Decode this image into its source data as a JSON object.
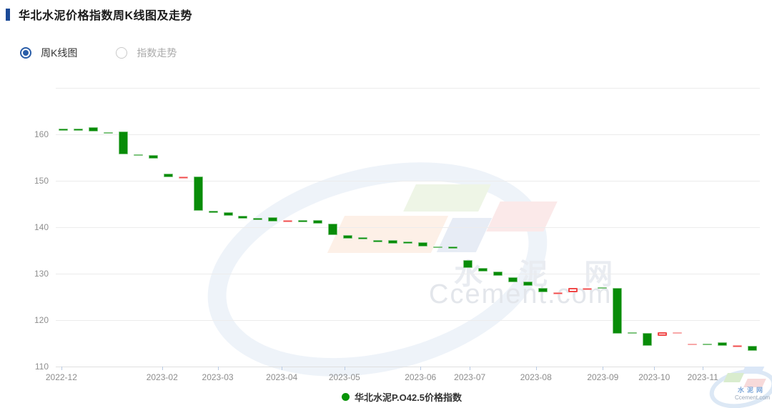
{
  "page": {
    "title": "华北水泥价格指数周K线图及走势"
  },
  "controls": {
    "options": [
      {
        "label": "周K线图",
        "selected": true
      },
      {
        "label": "指数走势",
        "selected": false
      }
    ]
  },
  "watermark": {
    "cn": "水 泥 网",
    "en": "Ccement.com"
  },
  "corner_logo": {
    "cn": "水泥网",
    "en": "Ccement.com"
  },
  "legend": {
    "label": "华北水泥P.O42.5价格指数",
    "color": "#089408"
  },
  "chart_data": {
    "type": "candlestick",
    "title": "华北水泥价格指数周K线图及走势",
    "series_name": "华北水泥P.O42.5价格指数",
    "ylim": [
      110,
      170
    ],
    "y_ticks": [
      110,
      120,
      130,
      140,
      150,
      160
    ],
    "grid": true,
    "colors": {
      "fall": "#088c08",
      "rise": "#f04a4a"
    },
    "x_ticks": [
      {
        "label": "2022-12",
        "pct": 0.8
      },
      {
        "label": "2023-02",
        "pct": 15.1
      },
      {
        "label": "2023-03",
        "pct": 23.0
      },
      {
        "label": "2023-04",
        "pct": 32.1
      },
      {
        "label": "2023-05",
        "pct": 41.0
      },
      {
        "label": "2023-06",
        "pct": 51.8
      },
      {
        "label": "2023-07",
        "pct": 58.8
      },
      {
        "label": "2023-08",
        "pct": 68.2
      },
      {
        "label": "2023-09",
        "pct": 77.7
      },
      {
        "label": "2023-10",
        "pct": 85.0
      },
      {
        "label": "2023-11",
        "pct": 91.9
      },
      {
        "label": "",
        "pct": 99.7
      }
    ],
    "candles": [
      {
        "o": 161.2,
        "c": 161.1,
        "t": "g"
      },
      {
        "o": 161.2,
        "c": 161.1,
        "t": "g"
      },
      {
        "o": 161.5,
        "c": 160.6,
        "t": "g"
      },
      {
        "o": 160.5,
        "c": 160.3,
        "t": "g"
      },
      {
        "o": 160.6,
        "c": 155.7,
        "t": "g"
      },
      {
        "o": 155.7,
        "c": 155.5,
        "t": "g"
      },
      {
        "o": 155.5,
        "c": 154.7,
        "t": "g"
      },
      {
        "o": 151.5,
        "c": 150.7,
        "t": "g"
      },
      {
        "o": 150.7,
        "c": 150.9,
        "t": "r"
      },
      {
        "o": 151.0,
        "c": 143.5,
        "t": "g"
      },
      {
        "o": 143.5,
        "c": 143.3,
        "t": "g"
      },
      {
        "o": 143.3,
        "c": 142.5,
        "t": "g"
      },
      {
        "o": 142.5,
        "c": 141.9,
        "t": "g"
      },
      {
        "o": 142.0,
        "c": 141.8,
        "t": "g"
      },
      {
        "o": 142.1,
        "c": 141.3,
        "t": "g"
      },
      {
        "o": 141.0,
        "c": 141.6,
        "t": "r"
      },
      {
        "o": 141.5,
        "c": 141.3,
        "t": "g"
      },
      {
        "o": 141.5,
        "c": 140.8,
        "t": "g"
      },
      {
        "o": 140.8,
        "c": 138.3,
        "t": "g"
      },
      {
        "o": 138.3,
        "c": 137.5,
        "t": "g"
      },
      {
        "o": 137.8,
        "c": 137.6,
        "t": "g"
      },
      {
        "o": 137.2,
        "c": 137.0,
        "t": "g"
      },
      {
        "o": 137.2,
        "c": 136.5,
        "t": "g"
      },
      {
        "o": 136.9,
        "c": 136.7,
        "t": "g"
      },
      {
        "o": 136.8,
        "c": 135.8,
        "t": "g"
      },
      {
        "o": 135.9,
        "c": 135.7,
        "t": "g"
      },
      {
        "o": 135.9,
        "c": 135.4,
        "t": "g"
      },
      {
        "o": 133.0,
        "c": 131.2,
        "t": "g"
      },
      {
        "o": 131.3,
        "c": 130.5,
        "t": "g"
      },
      {
        "o": 130.5,
        "c": 129.6,
        "t": "g"
      },
      {
        "o": 129.2,
        "c": 128.1,
        "t": "g"
      },
      {
        "o": 128.3,
        "c": 127.4,
        "t": "g"
      },
      {
        "o": 126.9,
        "c": 126.0,
        "t": "g"
      },
      {
        "o": 125.8,
        "c": 126.0,
        "t": "r"
      },
      {
        "o": 126.0,
        "c": 126.9,
        "t": "r",
        "h": true
      },
      {
        "o": 126.7,
        "c": 126.9,
        "t": "r"
      },
      {
        "o": 127.1,
        "c": 126.9,
        "t": "g"
      },
      {
        "o": 126.9,
        "c": 117.1,
        "t": "g"
      },
      {
        "o": 117.4,
        "c": 117.2,
        "t": "g"
      },
      {
        "o": 117.3,
        "c": 114.5,
        "t": "g"
      },
      {
        "o": 116.6,
        "c": 117.4,
        "t": "r",
        "h": true
      },
      {
        "o": 117.2,
        "c": 117.4,
        "t": "r"
      },
      {
        "o": 114.8,
        "c": 115.0,
        "t": "r"
      },
      {
        "o": 115.0,
        "c": 114.8,
        "t": "g"
      },
      {
        "o": 115.2,
        "c": 114.4,
        "t": "g"
      },
      {
        "o": 114.4,
        "c": 114.6,
        "t": "r"
      },
      {
        "o": 114.5,
        "c": 113.4,
        "t": "g"
      }
    ]
  }
}
